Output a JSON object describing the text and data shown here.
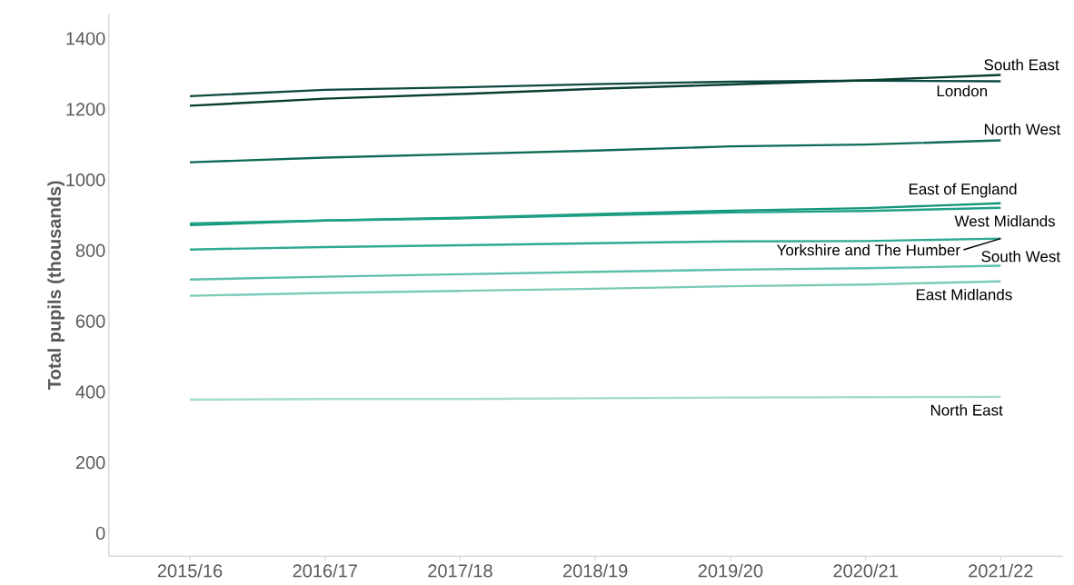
{
  "chart_data": {
    "type": "line",
    "ylabel": "Total pupils (thousands)",
    "categories": [
      "2015/16",
      "2016/17",
      "2017/18",
      "2018/19",
      "2019/20",
      "2020/21",
      "2021/22"
    ],
    "ylim": [
      -65,
      1470
    ],
    "yticks": [
      0,
      200,
      400,
      600,
      800,
      1000,
      1200,
      1400
    ],
    "series": [
      {
        "name": "London",
        "color": "#0d4a3f",
        "values": [
          1237,
          1255,
          1262,
          1271,
          1278,
          1281,
          1279
        ]
      },
      {
        "name": "South East",
        "color": "#083d33",
        "values": [
          1210,
          1230,
          1243,
          1258,
          1270,
          1282,
          1297
        ]
      },
      {
        "name": "North West",
        "color": "#0e6b57",
        "values": [
          1050,
          1063,
          1073,
          1083,
          1095,
          1100,
          1112
        ]
      },
      {
        "name": "East of England",
        "color": "#13967a",
        "values": [
          872,
          885,
          893,
          903,
          913,
          920,
          934
        ]
      },
      {
        "name": "West Midlands",
        "color": "#1fa086",
        "values": [
          877,
          885,
          891,
          900,
          908,
          912,
          921
        ]
      },
      {
        "name": "Yorkshire and The Humber",
        "color": "#2eaa92",
        "values": [
          803,
          810,
          815,
          821,
          826,
          827,
          834
        ]
      },
      {
        "name": "South West",
        "color": "#5cbfa9",
        "values": [
          718,
          726,
          733,
          740,
          746,
          750,
          757
        ]
      },
      {
        "name": "East Midlands",
        "color": "#7acab8",
        "values": [
          672,
          680,
          686,
          692,
          699,
          704,
          713
        ]
      },
      {
        "name": "North East",
        "color": "#a3dbcd",
        "values": [
          378,
          380,
          380,
          382,
          384,
          385,
          386
        ]
      }
    ]
  }
}
